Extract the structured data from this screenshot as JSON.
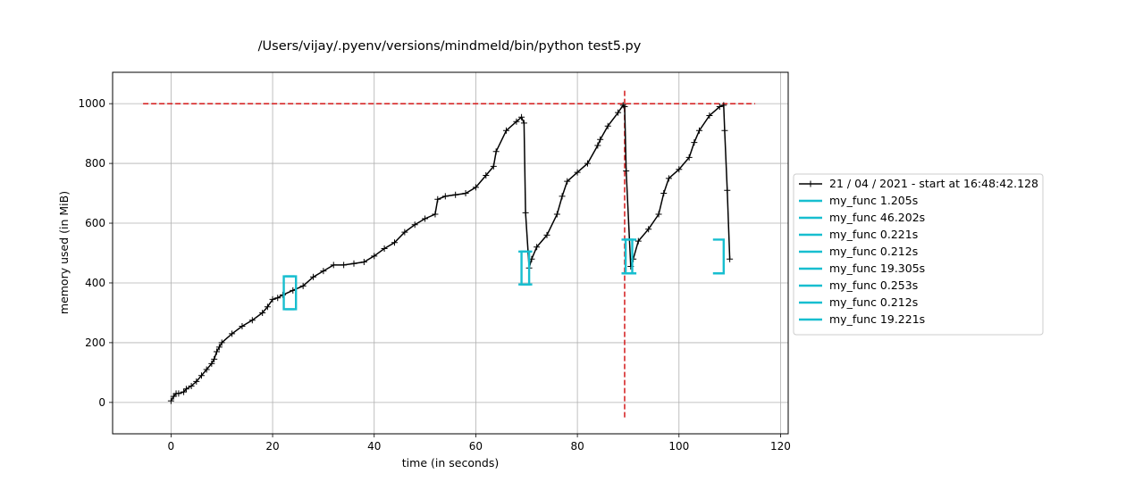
{
  "chart_data": {
    "type": "line",
    "title": "/Users/vijay/.pyenv/versions/mindmeld/bin/python test5.py",
    "xlabel": "time (in seconds)",
    "ylabel": "memory used (in MiB)",
    "xlim": [
      -11.5,
      121.5
    ],
    "ylim": [
      -105,
      1105
    ],
    "xticks": [
      0,
      20,
      40,
      60,
      80,
      100,
      120
    ],
    "yticks": [
      0,
      200,
      400,
      600,
      800,
      1000
    ],
    "grid": true,
    "legend_position": "right, outside plot",
    "colors": {
      "memory_line": "#000000",
      "function_brackets": "#17becf",
      "markers": "#d62728"
    },
    "memory_series": {
      "name": "21 / 04 / 2021 - start at 16:48:42.128",
      "x": [
        0,
        0.5,
        1,
        1.5,
        2.5,
        3,
        4,
        5,
        6,
        7,
        8,
        8.5,
        9,
        9.5,
        10,
        12,
        14,
        16,
        18,
        19,
        20,
        21,
        22,
        24,
        26,
        28,
        30,
        32,
        34,
        36,
        38,
        40,
        42,
        44,
        46,
        48,
        50,
        52,
        52.5,
        54,
        56,
        58,
        60,
        62,
        63.5,
        64,
        66,
        68,
        69,
        69.5,
        69.8,
        70.5,
        71,
        72,
        74,
        76,
        77,
        78,
        80,
        82,
        84,
        84.5,
        86,
        88,
        89,
        89.3,
        89.6,
        90.5,
        91,
        92,
        94,
        96,
        97,
        98,
        100,
        102,
        103,
        104,
        106,
        108,
        108.8,
        109,
        109.5,
        110
      ],
      "y": [
        5,
        20,
        30,
        30,
        35,
        45,
        55,
        70,
        90,
        110,
        130,
        145,
        170,
        185,
        200,
        230,
        255,
        275,
        300,
        320,
        345,
        350,
        360,
        375,
        390,
        420,
        440,
        460,
        460,
        465,
        470,
        490,
        515,
        535,
        570,
        595,
        615,
        630,
        680,
        690,
        695,
        700,
        720,
        760,
        790,
        840,
        910,
        940,
        955,
        935,
        635,
        450,
        480,
        520,
        560,
        630,
        690,
        740,
        770,
        800,
        860,
        880,
        925,
        970,
        995,
        990,
        775,
        455,
        480,
        540,
        580,
        630,
        700,
        750,
        780,
        820,
        870,
        910,
        960,
        990,
        995,
        910,
        710,
        480
      ],
      "markers": "+"
    },
    "functions": [
      {
        "label": "my_func 1.205s",
        "start": 23.0,
        "end": 24.2,
        "min": 312,
        "max": 422
      },
      {
        "label": "my_func 46.202s",
        "start": 23.3,
        "end": 69.5,
        "min": 312,
        "max": 958
      },
      {
        "label": "my_func 0.221s",
        "start": 70.0,
        "end": 70.2,
        "min": 395,
        "max": 505
      },
      {
        "label": "my_func 0.212s",
        "start": 89.8,
        "end": 90.0,
        "min": 432,
        "max": 545
      },
      {
        "label": "my_func 19.305s",
        "start": 70.5,
        "end": 89.8,
        "min": 395,
        "max": 1000
      },
      {
        "label": "my_func 0.253s",
        "start": 90.3,
        "end": 90.5,
        "min": 432,
        "max": 545
      },
      {
        "label": "my_func 0.212s",
        "start": 89.5,
        "end": 89.7,
        "min": 432,
        "max": 545
      },
      {
        "label": "my_func 19.221s",
        "start": 90.5,
        "end": 109.7,
        "min": 432,
        "max": 1000
      }
    ],
    "visible_brackets": [
      {
        "x": 22.2,
        "ymin": 312,
        "ymax": 422,
        "side": "left",
        "series": 0
      },
      {
        "x": 24.6,
        "ymin": 312,
        "ymax": 422,
        "side": "right",
        "series": 0
      },
      {
        "x": 69.0,
        "ymin": 395,
        "ymax": 505,
        "side": "left",
        "series": 2
      },
      {
        "x": 70.5,
        "ymin": 395,
        "ymax": 505,
        "side": "right",
        "series": 2
      },
      {
        "x": 89.5,
        "ymin": 432,
        "ymax": 545,
        "side": "left",
        "series": 3
      },
      {
        "x": 90.8,
        "ymin": 432,
        "ymax": 545,
        "side": "right",
        "series": 5
      },
      {
        "x": 108.8,
        "ymin": 432,
        "ymax": 545,
        "side": "right",
        "series": 7
      }
    ],
    "memory_limit": {
      "y": 1000,
      "xmin": -5.5,
      "xmax": 115
    },
    "time_marker": {
      "x": 89.3,
      "ymin": -50,
      "ymax": 1050
    }
  }
}
